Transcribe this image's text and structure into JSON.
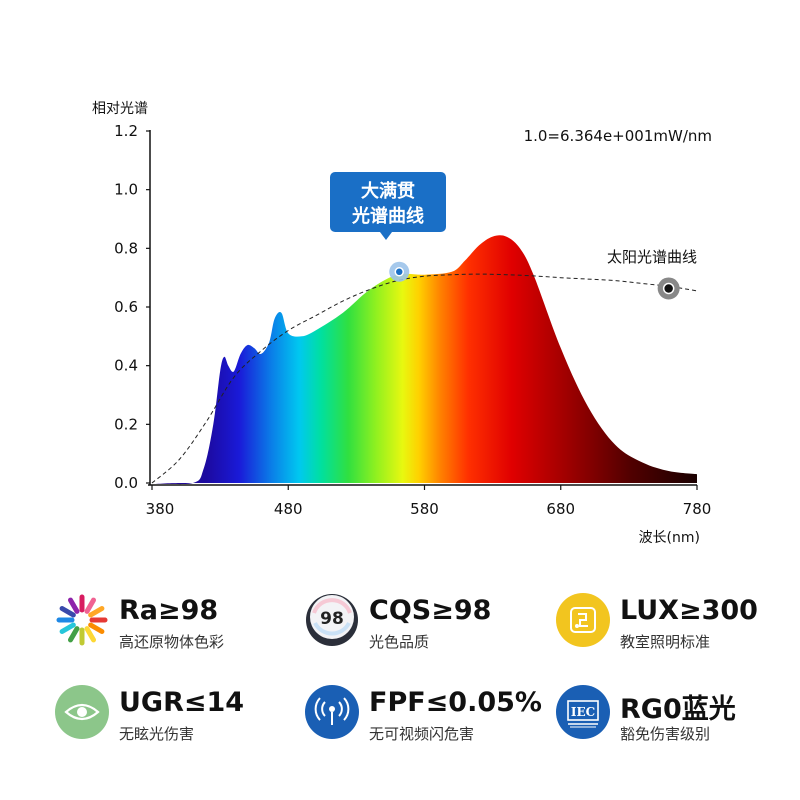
{
  "chart_data": {
    "type": "area",
    "ylabel": "相对光谱",
    "xlabel": "波长(nm)",
    "scale_note": "1.0=6.364e+001mW/nm",
    "xlim": [
      380,
      780
    ],
    "ylim": [
      0,
      1.2
    ],
    "x_ticks": [
      380,
      480,
      580,
      680,
      780
    ],
    "y_ticks": [
      "0.0",
      "0.2",
      "0.4",
      "0.6",
      "0.8",
      "1.0",
      "1.2"
    ],
    "series": [
      {
        "name": "大满贯光谱曲线",
        "x": [
          380,
          410,
          418,
          425,
          430,
          433,
          436,
          440,
          445,
          450,
          455,
          460,
          466,
          470,
          475,
          480,
          490,
          500,
          520,
          540,
          560,
          580,
          600,
          610,
          620,
          630,
          640,
          650,
          660,
          680,
          700,
          720,
          740,
          760,
          780
        ],
        "y": [
          0.0,
          0.0,
          0.05,
          0.2,
          0.38,
          0.43,
          0.4,
          0.38,
          0.44,
          0.47,
          0.46,
          0.44,
          0.48,
          0.56,
          0.58,
          0.51,
          0.5,
          0.52,
          0.58,
          0.66,
          0.71,
          0.71,
          0.72,
          0.76,
          0.81,
          0.84,
          0.84,
          0.8,
          0.71,
          0.46,
          0.26,
          0.13,
          0.07,
          0.04,
          0.03
        ]
      },
      {
        "name": "太阳光谱曲线",
        "x": [
          380,
          400,
          420,
          440,
          460,
          480,
          500,
          520,
          540,
          560,
          580,
          600,
          620,
          640,
          660,
          680,
          700,
          720,
          740,
          760,
          780
        ],
        "y": [
          0.0,
          0.08,
          0.21,
          0.36,
          0.45,
          0.52,
          0.57,
          0.62,
          0.66,
          0.69,
          0.705,
          0.71,
          0.712,
          0.71,
          0.706,
          0.7,
          0.695,
          0.69,
          0.68,
          0.67,
          0.655
        ]
      }
    ],
    "annotations": {
      "callout_line1": "大满贯",
      "callout_line2": "光谱曲线",
      "sun_label": "太阳光谱曲线",
      "callout_x": 560,
      "callout_y": 0.72,
      "sun_marker_x": 757,
      "sun_marker_y": 0.67
    }
  },
  "features": [
    {
      "title": "Ra≥98",
      "subtitle": "高还原物体色彩",
      "icon": "color-wheel-icon"
    },
    {
      "title": "CQS≥98",
      "subtitle": "光色品质",
      "icon": "cqs-98-badge-icon"
    },
    {
      "title": "LUX≥300",
      "subtitle": "教室照明标准",
      "icon": "lux-light-icon"
    },
    {
      "title": "UGR≤14",
      "subtitle": "无眩光伤害",
      "icon": "eye-icon"
    },
    {
      "title": "FPF≤0.05%",
      "subtitle": "无可视频闪危害",
      "icon": "flicker-signal-icon"
    },
    {
      "title": "RG0蓝光",
      "subtitle": "豁免伤害级别",
      "icon": "iec-icon"
    }
  ],
  "colors": {
    "callout_blue": "#1a6fc6",
    "feature_green": "#8cc68a",
    "feature_blue": "#1a5fb4",
    "feature_yellow": "#f2c51f",
    "axis": "#111111"
  }
}
